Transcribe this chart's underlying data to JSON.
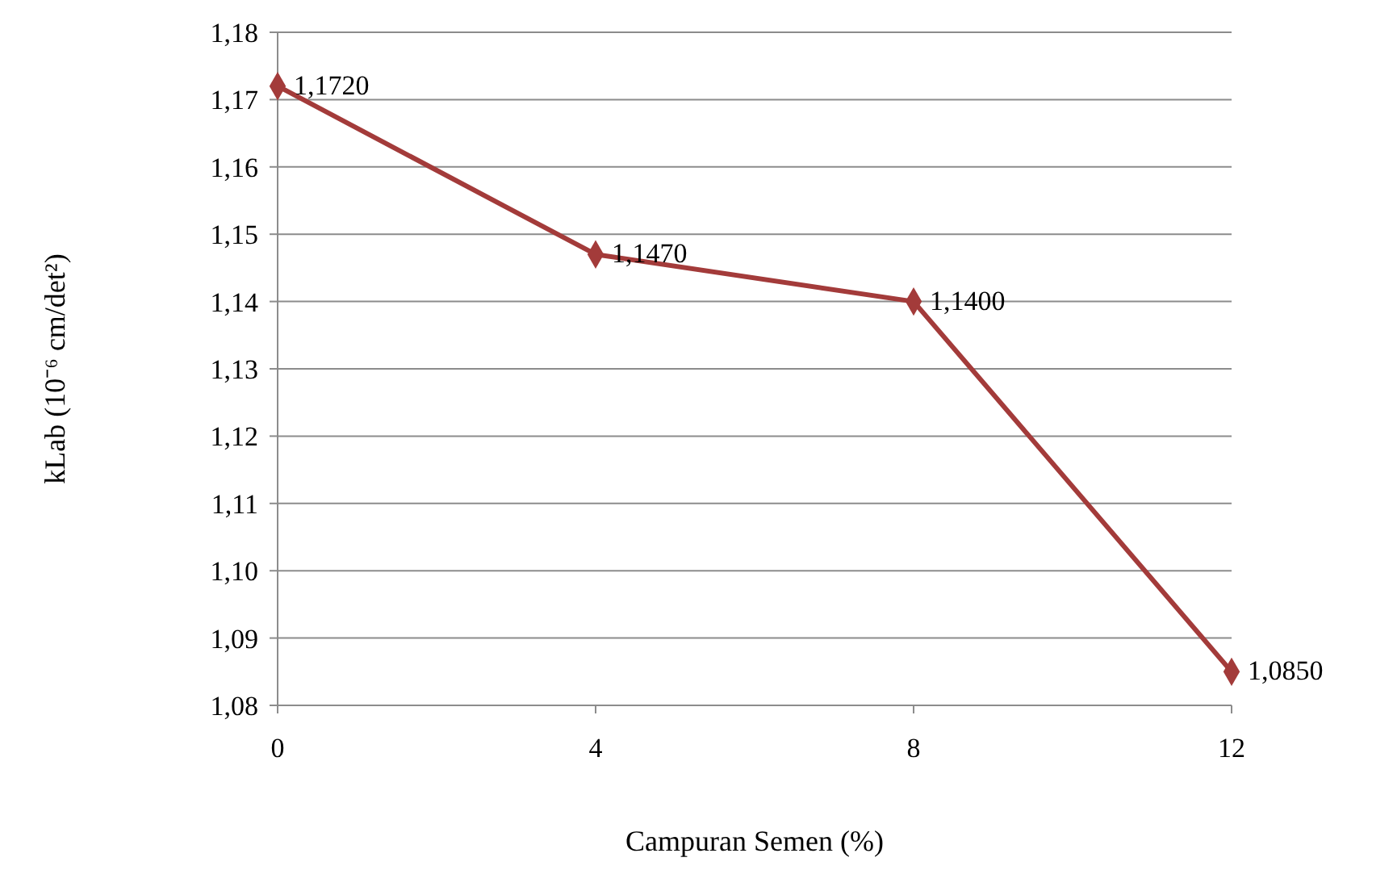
{
  "chart_data": {
    "type": "line",
    "xlabel": "Campuran Semen (%)",
    "ylabel": "kLab (10⁻⁶ cm/det²)",
    "categories": [
      "0",
      "4",
      "8",
      "12"
    ],
    "series": [
      {
        "color": "#a33b3a",
        "values": [
          1.172,
          1.147,
          1.14,
          1.085
        ],
        "value_labels": [
          "1,1720",
          "1,1470",
          "1,1400",
          "1,0850"
        ]
      }
    ],
    "ylim": [
      1.08,
      1.18
    ],
    "yticks": [
      {
        "value": 1.08,
        "label": "1,08"
      },
      {
        "value": 1.09,
        "label": "1,09"
      },
      {
        "value": 1.1,
        "label": "1,10"
      },
      {
        "value": 1.11,
        "label": "1,11"
      },
      {
        "value": 1.12,
        "label": "1,12"
      },
      {
        "value": 1.13,
        "label": "1,13"
      },
      {
        "value": 1.14,
        "label": "1,14"
      },
      {
        "value": 1.15,
        "label": "1,15"
      },
      {
        "value": 1.16,
        "label": "1,16"
      },
      {
        "value": 1.17,
        "label": "1,17"
      },
      {
        "value": 1.18,
        "label": "1,18"
      }
    ],
    "grid": "y",
    "marker": "diamond",
    "line_style": "solid"
  }
}
